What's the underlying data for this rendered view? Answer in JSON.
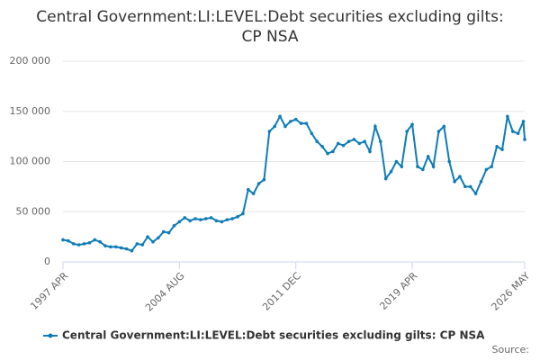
{
  "chart_data": {
    "type": "line",
    "title": "Central Government:LI:LEVEL:Debt securities excluding gilts: CP NSA",
    "source": "Source:",
    "x": [
      "1997 APR",
      "1997 AUG",
      "1997 DEC",
      "1998 APR",
      "1998 AUG",
      "1998 DEC",
      "1999 APR",
      "1999 AUG",
      "1999 DEC",
      "2000 APR",
      "2000 AUG",
      "2000 DEC",
      "2001 APR",
      "2001 AUG",
      "2001 DEC",
      "2002 APR",
      "2002 AUG",
      "2002 DEC",
      "2003 APR",
      "2003 AUG",
      "2003 DEC",
      "2004 APR",
      "2004 AUG",
      "2004 DEC",
      "2005 APR",
      "2005 AUG",
      "2005 DEC",
      "2006 APR",
      "2006 AUG",
      "2006 DEC",
      "2007 APR",
      "2007 AUG",
      "2007 DEC",
      "2008 APR",
      "2008 AUG",
      "2008 DEC",
      "2009 APR",
      "2009 AUG",
      "2009 DEC",
      "2010 APR",
      "2010 AUG",
      "2010 DEC",
      "2011 APR",
      "2011 AUG",
      "2011 DEC",
      "2012 APR",
      "2012 AUG",
      "2012 DEC",
      "2013 APR",
      "2013 AUG",
      "2013 DEC",
      "2014 APR",
      "2014 AUG",
      "2014 DEC",
      "2015 APR",
      "2015 AUG",
      "2015 DEC",
      "2016 APR",
      "2016 AUG",
      "2016 DEC",
      "2017 APR",
      "2017 AUG",
      "2017 DEC",
      "2018 APR",
      "2018 AUG",
      "2018 DEC",
      "2019 APR",
      "2019 AUG",
      "2019 DEC",
      "2020 APR",
      "2020 AUG",
      "2020 DEC",
      "2021 APR",
      "2021 AUG",
      "2021 DEC",
      "2022 APR",
      "2022 AUG",
      "2022 DEC",
      "2023 APR",
      "2023 AUG",
      "2023 DEC",
      "2024 APR",
      "2024 AUG",
      "2024 DEC",
      "2025 APR",
      "2025 AUG",
      "2025 DEC",
      "2026 APR",
      "2026 MAY"
    ],
    "series": [
      {
        "name": "Central Government:LI:LEVEL:Debt securities excluding gilts: CP NSA",
        "color": "#0f7cb6",
        "values": [
          22000,
          21000,
          18000,
          17000,
          18000,
          19000,
          22000,
          20000,
          16000,
          15000,
          15000,
          14000,
          13000,
          11000,
          18000,
          17000,
          25000,
          20000,
          24000,
          30000,
          29000,
          36000,
          40000,
          44000,
          41000,
          43000,
          42000,
          43000,
          44000,
          41000,
          40000,
          42000,
          43000,
          45000,
          48000,
          72000,
          68000,
          78000,
          82000,
          130000,
          135000,
          145000,
          135000,
          140000,
          142000,
          138000,
          138000,
          128000,
          120000,
          115000,
          108000,
          110000,
          118000,
          116000,
          120000,
          122000,
          118000,
          120000,
          110000,
          135000,
          120000,
          83000,
          90000,
          100000,
          95000,
          130000,
          137000,
          95000,
          92000,
          105000,
          95000,
          130000,
          135000,
          100000,
          80000,
          85000,
          75000,
          75000,
          68000,
          80000,
          92000,
          95000,
          115000,
          112000,
          145000,
          130000,
          128000,
          140000,
          122000
        ]
      }
    ],
    "xticks": [
      "1997 APR",
      "2004 AUG",
      "2011 DEC",
      "2019 APR",
      "2026 MAY"
    ],
    "ylim": [
      0,
      200000
    ],
    "yticks": [
      0,
      {
        "value": 50000,
        "label": "50 000"
      },
      {
        "value": 100000,
        "label": "100 000"
      },
      {
        "value": 150000,
        "label": "150 000"
      },
      {
        "value": 200000,
        "label": "200 000"
      }
    ],
    "grid": true,
    "legend": "bottom"
  }
}
